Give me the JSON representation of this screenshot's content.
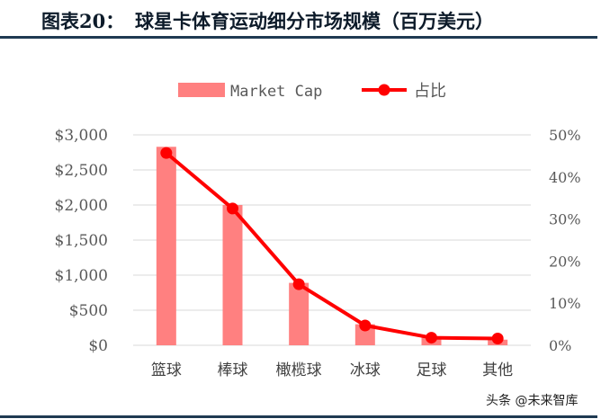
{
  "header": {
    "figure_label": "图表20：",
    "title": "球星卡体育运动细分市场规模（百万美元）"
  },
  "watermark": "头条 @未来智库",
  "colors": {
    "bar": "#ff8080",
    "line": "#ff0000",
    "rule": "#1f3a52",
    "axis_text": "#595959",
    "grid": "#d9d9d9"
  },
  "chart_data": {
    "type": "bar",
    "categories": [
      "篮球",
      "棒球",
      "橄榄球",
      "冰球",
      "足球",
      "其他"
    ],
    "series": [
      {
        "name": "Market Cap",
        "type": "bar",
        "axis": "left",
        "values": [
          2830,
          2000,
          890,
          300,
          120,
          80
        ]
      },
      {
        "name": "占比",
        "type": "line",
        "axis": "right",
        "values": [
          0.457,
          0.325,
          0.145,
          0.047,
          0.018,
          0.016
        ]
      }
    ],
    "y_left": {
      "ticks": [
        "$0",
        "$500",
        "$1,000",
        "$1,500",
        "$2,000",
        "$2,500",
        "$3,000"
      ],
      "range": [
        0,
        3000
      ]
    },
    "y_right": {
      "ticks": [
        "0%",
        "10%",
        "20%",
        "30%",
        "40%",
        "50%"
      ],
      "range": [
        0,
        0.5
      ]
    },
    "grid": true,
    "legend": "top-center"
  }
}
